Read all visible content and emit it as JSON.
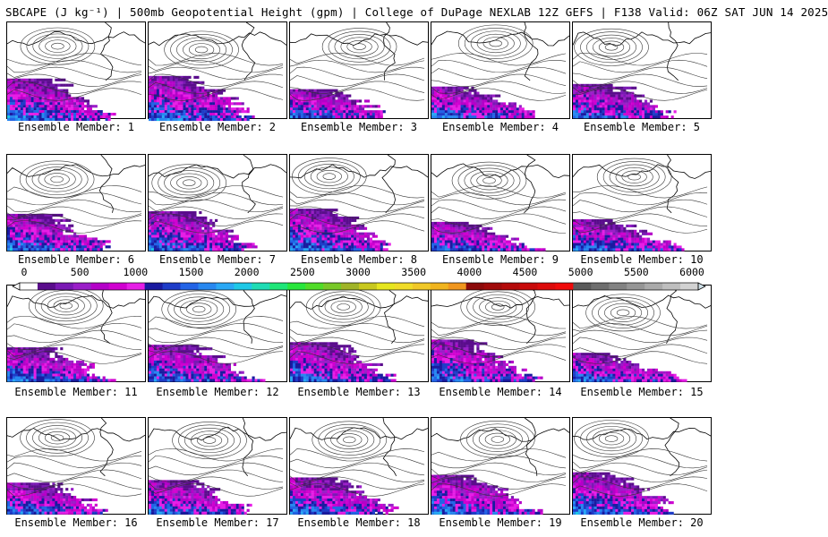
{
  "title": "SBCAPE (J kg⁻¹) | 500mb Geopotential Height (gpm) | College of DuPage NEXLAB 12Z GEFS | F138 Valid: 06Z SAT JUN 14 2025",
  "members": [
    "Ensemble Member: 1",
    "Ensemble Member: 2",
    "Ensemble Member: 3",
    "Ensemble Member: 4",
    "Ensemble Member: 5",
    "Ensemble Member: 6",
    "Ensemble Member: 7",
    "Ensemble Member: 8",
    "Ensemble Member: 9",
    "Ensemble Member: 10",
    "Ensemble Member: 11",
    "Ensemble Member: 12",
    "Ensemble Member: 13",
    "Ensemble Member: 14",
    "Ensemble Member: 15",
    "Ensemble Member: 16",
    "Ensemble Member: 17",
    "Ensemble Member: 18",
    "Ensemble Member: 19",
    "Ensemble Member: 20"
  ],
  "colorbar": {
    "ticks": [
      "0",
      "500",
      "1000",
      "1500",
      "2000",
      "2500",
      "3000",
      "3500",
      "4000",
      "4500",
      "5000",
      "5500",
      "6000"
    ],
    "colors": [
      "#ffffff",
      "#5a0d8c",
      "#7a19b4",
      "#9a1ec8",
      "#b400c8",
      "#d000d0",
      "#e61ee6",
      "#1a1aa0",
      "#1e3cc8",
      "#2364e6",
      "#2888f0",
      "#2aa8f5",
      "#1ec8e6",
      "#1edcb4",
      "#1ee678",
      "#28e63c",
      "#50dc28",
      "#78c828",
      "#a0b428",
      "#c8c81e",
      "#e6e61e",
      "#f0dc28",
      "#f0c828",
      "#f0b41e",
      "#f0961e",
      "#8c0a0a",
      "#a00a0a",
      "#b40a0a",
      "#c80a0a",
      "#dc0a0a",
      "#f00a0a",
      "#5a5a5a",
      "#6e6e6e",
      "#828282",
      "#969696",
      "#aaaaaa",
      "#bebebe",
      "#d2d2d2"
    ]
  }
}
